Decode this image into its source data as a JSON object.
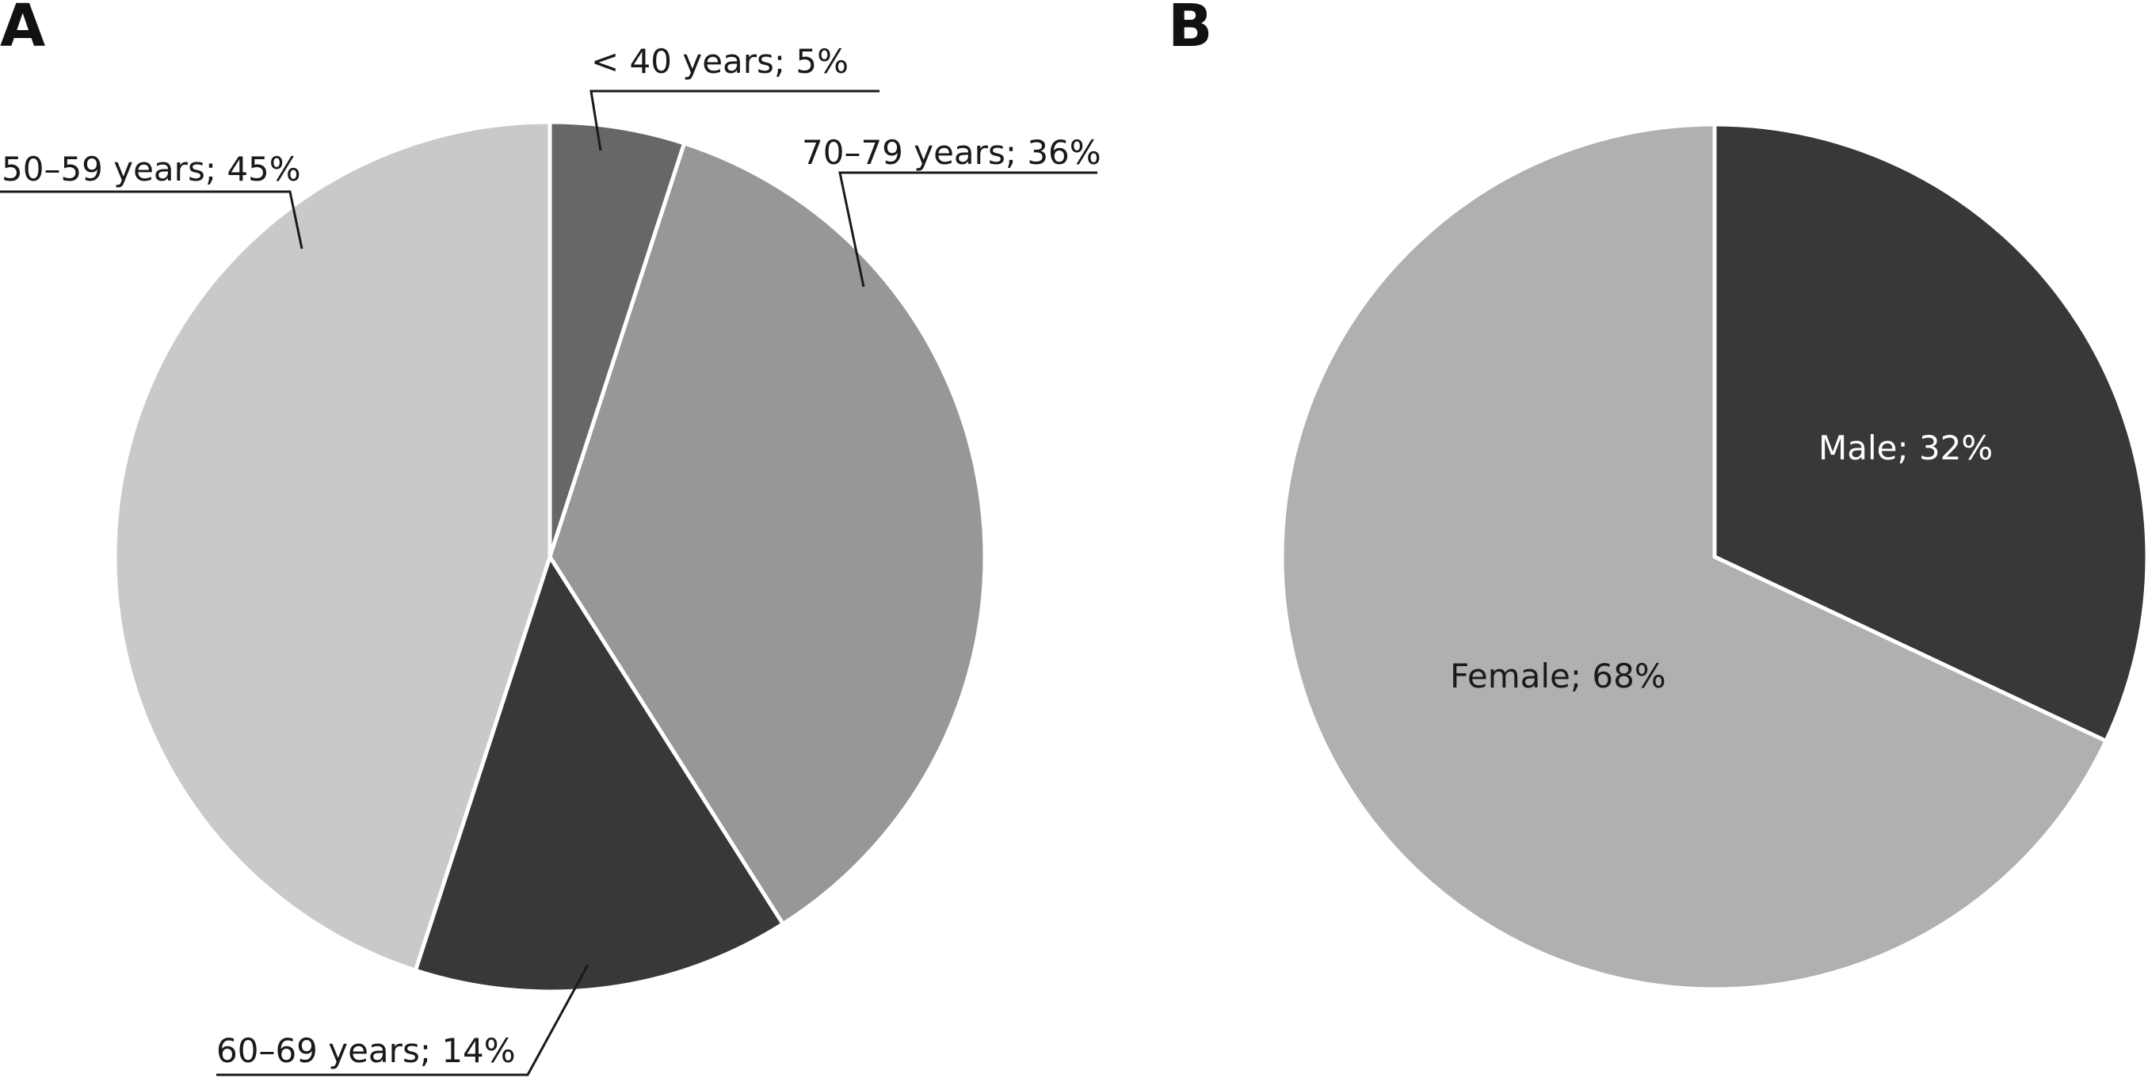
{
  "chart_data": [
    {
      "type": "pie",
      "panel": "A",
      "title": "",
      "start_angle_deg": 0,
      "direction": "clockwise",
      "slices": [
        {
          "label": "< 40 years; 5%",
          "category": "< 40 years",
          "value": 5,
          "color": "#676767"
        },
        {
          "label": "70–79 years; 36%",
          "category": "70–79 years",
          "value": 36,
          "color": "#979797"
        },
        {
          "label": "60–69 years; 14%",
          "category": "60–69 years",
          "value": 14,
          "color": "#383838"
        },
        {
          "label": "50–59 years; 45%",
          "category": "50–59 years",
          "value": 45,
          "color": "#c9c9c9"
        }
      ]
    },
    {
      "type": "pie",
      "panel": "B",
      "title": "",
      "start_angle_deg": 0,
      "direction": "clockwise",
      "slices": [
        {
          "label": "Male; 32%",
          "category": "Male",
          "value": 32,
          "color": "#383838"
        },
        {
          "label": "Female; 68%",
          "category": "Female",
          "value": 68,
          "color": "#b0b0b0"
        }
      ]
    }
  ]
}
